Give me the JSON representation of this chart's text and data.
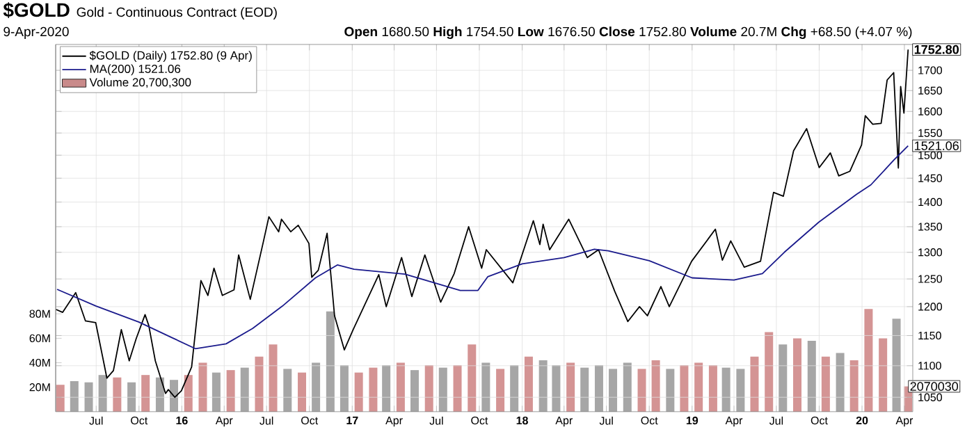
{
  "chart_data": {
    "type": "line",
    "title": "$GOLD",
    "subtitle": "Gold - Continuous Contract (EOD)",
    "annotations": [
      "9-Apr-2020",
      "**Open** 1680.50 **High** 1754.50 **Low** 1676.50 **Close** 1752.80 **Volume** 20.7M **Chg** +68.50 (+4.07 %)",
      "2070030",
      {
        "text": "1752.80",
        "x": "2020-04-09",
        "y": 1752.8
      },
      {
        "text": "1521.06",
        "x": "2020-04-09",
        "y": 1521.06
      }
    ],
    "xlim": [
      "2015-04-05",
      "2020-04-19"
    ],
    "xticks": [
      {
        "value": "2015-07-01",
        "label": "Jul"
      },
      {
        "value": "2015-10-01",
        "label": "Oct"
      },
      {
        "value": "2016-01-01",
        "label": "16"
      },
      {
        "value": "2016-04-01",
        "label": "Apr"
      },
      {
        "value": "2016-07-01",
        "label": "Jul"
      },
      {
        "value": "2016-10-01",
        "label": "Oct"
      },
      {
        "value": "2017-01-01",
        "label": "17"
      },
      {
        "value": "2017-04-01",
        "label": "Apr"
      },
      {
        "value": "2017-07-01",
        "label": "Jul"
      },
      {
        "value": "2017-10-01",
        "label": "Oct"
      },
      {
        "value": "2018-01-01",
        "label": "18"
      },
      {
        "value": "2018-04-01",
        "label": "Apr"
      },
      {
        "value": "2018-07-01",
        "label": "Jul"
      },
      {
        "value": "2018-10-01",
        "label": "Oct"
      },
      {
        "value": "2019-01-01",
        "label": "19"
      },
      {
        "value": "2019-04-01",
        "label": "Apr"
      },
      {
        "value": "2019-07-01",
        "label": "Jul"
      },
      {
        "value": "2019-10-01",
        "label": "Oct"
      },
      {
        "value": "2020-01-01",
        "label": "20"
      },
      {
        "value": "2020-04-01",
        "label": "Apr"
      }
    ],
    "ylim": [
      1028,
      1766
    ],
    "log": "y",
    "yticks": [
      1050,
      1100,
      1150,
      1200,
      1250,
      1300,
      1350,
      1400,
      1450,
      1500,
      1550,
      1600,
      1650,
      1700
    ],
    "y2lim": [
      0,
      300
    ],
    "y2ticks": [
      {
        "value": 20,
        "label": "20M"
      },
      {
        "value": 40,
        "label": "40M"
      },
      {
        "value": 60,
        "label": "60M"
      },
      {
        "value": 80,
        "label": "80M"
      }
    ],
    "grid": true,
    "legend": "top left",
    "marker": "none",
    "line_style": "solid",
    "series": [
      {
        "name": "$GOLD (Daily) 1752.80 (9 Apr)",
        "color": "#000000",
        "x": [
          "2015-04-06",
          "2015-04-20",
          "2015-05-18",
          "2015-06-08",
          "2015-06-30",
          "2015-07-20",
          "2015-07-24",
          "2015-08-07",
          "2015-08-24",
          "2015-09-10",
          "2015-09-25",
          "2015-10-14",
          "2015-10-22",
          "2015-11-05",
          "2015-11-27",
          "2015-12-03",
          "2015-12-17",
          "2015-12-31",
          "2016-01-22",
          "2016-02-11",
          "2016-02-26",
          "2016-03-10",
          "2016-03-28",
          "2016-04-22",
          "2016-05-02",
          "2016-05-27",
          "2016-06-24",
          "2016-07-06",
          "2016-07-27",
          "2016-08-02",
          "2016-08-22",
          "2016-09-07",
          "2016-09-30",
          "2016-10-06",
          "2016-10-20",
          "2016-11-08",
          "2016-11-24",
          "2016-12-15",
          "2017-01-03",
          "2017-02-27",
          "2017-03-15",
          "2017-04-17",
          "2017-05-09",
          "2017-06-06",
          "2017-07-10",
          "2017-08-08",
          "2017-09-08",
          "2017-10-06",
          "2017-10-16",
          "2017-12-12",
          "2018-01-25",
          "2018-02-08",
          "2018-02-15",
          "2018-03-01",
          "2018-04-11",
          "2018-05-21",
          "2018-06-14",
          "2018-07-19",
          "2018-08-16",
          "2018-09-10",
          "2018-09-27",
          "2018-10-26",
          "2018-11-13",
          "2018-12-31",
          "2019-02-20",
          "2019-03-07",
          "2019-03-25",
          "2019-04-23",
          "2019-05-28",
          "2019-06-25",
          "2019-07-16",
          "2019-08-07",
          "2019-09-04",
          "2019-10-01",
          "2019-10-25",
          "2019-11-12",
          "2019-12-06",
          "2019-12-31",
          "2020-01-08",
          "2020-01-24",
          "2020-02-11",
          "2020-02-24",
          "2020-03-09",
          "2020-03-19",
          "2020-03-24",
          "2020-03-31",
          "2020-04-09"
        ],
        "values": [
          1195,
          1190,
          1225,
          1175,
          1172,
          1095,
          1080,
          1092,
          1160,
          1108,
          1145,
          1186,
          1167,
          1108,
          1056,
          1062,
          1050,
          1060,
          1098,
          1247,
          1220,
          1270,
          1220,
          1230,
          1295,
          1213,
          1320,
          1370,
          1340,
          1365,
          1340,
          1353,
          1317,
          1253,
          1266,
          1337,
          1184,
          1126,
          1160,
          1258,
          1200,
          1290,
          1218,
          1295,
          1208,
          1260,
          1350,
          1270,
          1305,
          1243,
          1362,
          1315,
          1355,
          1305,
          1365,
          1290,
          1305,
          1227,
          1174,
          1200,
          1184,
          1236,
          1200,
          1283,
          1345,
          1285,
          1322,
          1272,
          1283,
          1420,
          1412,
          1510,
          1560,
          1473,
          1505,
          1455,
          1465,
          1523,
          1590,
          1570,
          1572,
          1676,
          1694,
          1472,
          1660,
          1596,
          1752.8
        ]
      },
      {
        "name": "MA(200) 1521.06",
        "color": "#1a1a8c",
        "x": [
          "2015-04-08",
          "2015-07-01",
          "2015-10-01",
          "2015-12-12",
          "2016-01-30",
          "2016-04-05",
          "2016-06-01",
          "2016-08-04",
          "2016-10-14",
          "2016-11-30",
          "2017-01-05",
          "2017-04-24",
          "2017-08-21",
          "2017-09-28",
          "2017-10-19",
          "2018-01-01",
          "2018-04-01",
          "2018-06-05",
          "2018-07-05",
          "2018-10-01",
          "2019-01-01",
          "2019-04-01",
          "2019-06-01",
          "2019-07-18",
          "2019-09-30",
          "2019-12-20",
          "2020-01-20",
          "2020-03-10",
          "2020-04-09"
        ],
        "values": [
          1231,
          1201,
          1173,
          1146,
          1128,
          1136,
          1162,
          1201,
          1252,
          1276,
          1268,
          1259,
          1229,
          1229,
          1254,
          1278,
          1290,
          1306,
          1303,
          1284,
          1252,
          1248,
          1260,
          1300,
          1359,
          1416,
          1436,
          1490,
          1521.06
        ]
      },
      {
        "name": "Volume 20,700,300",
        "type": "bar",
        "axis": "y2",
        "color": "#c98a8a",
        "x": [
          "2015-04-15",
          "2015-05-15",
          "2015-06-15",
          "2015-07-15",
          "2015-08-15",
          "2015-09-15",
          "2015-10-15",
          "2015-11-15",
          "2015-12-15",
          "2016-01-15",
          "2016-02-15",
          "2016-03-15",
          "2016-04-15",
          "2016-05-15",
          "2016-06-15",
          "2016-07-15",
          "2016-08-15",
          "2016-09-15",
          "2016-10-15",
          "2016-11-15",
          "2016-12-15",
          "2017-01-15",
          "2017-02-15",
          "2017-03-15",
          "2017-04-15",
          "2017-05-15",
          "2017-06-15",
          "2017-07-15",
          "2017-08-15",
          "2017-09-15",
          "2017-10-15",
          "2017-11-15",
          "2017-12-15",
          "2018-01-15",
          "2018-02-15",
          "2018-03-15",
          "2018-04-15",
          "2018-05-15",
          "2018-06-15",
          "2018-07-15",
          "2018-08-15",
          "2018-09-15",
          "2018-10-15",
          "2018-11-15",
          "2018-12-15",
          "2019-01-15",
          "2019-02-15",
          "2019-03-15",
          "2019-04-15",
          "2019-05-15",
          "2019-06-15",
          "2019-07-15",
          "2019-08-15",
          "2019-09-15",
          "2019-10-15",
          "2019-11-15",
          "2019-12-15",
          "2020-01-15",
          "2020-02-15",
          "2020-03-15",
          "2020-04-09"
        ],
        "values": [
          22,
          25,
          24,
          30,
          28,
          24,
          30,
          28,
          26,
          30,
          40,
          32,
          34,
          36,
          45,
          55,
          35,
          32,
          40,
          82,
          38,
          32,
          36,
          38,
          40,
          34,
          38,
          36,
          38,
          55,
          40,
          35,
          38,
          45,
          42,
          38,
          40,
          36,
          38,
          35,
          40,
          35,
          42,
          35,
          38,
          40,
          38,
          36,
          35,
          45,
          65,
          55,
          60,
          58,
          45,
          48,
          42,
          84,
          60,
          76,
          20.7
        ],
        "colors": [
          "#d49494",
          "#a6a6a6",
          "#a6a6a6",
          "#a6a6a6",
          "#d49494",
          "#a6a6a6",
          "#d49494",
          "#a6a6a6",
          "#a6a6a6",
          "#d49494",
          "#d49494",
          "#a6a6a6",
          "#d49494",
          "#a6a6a6",
          "#d49494",
          "#d49494",
          "#a6a6a6",
          "#d49494",
          "#a6a6a6",
          "#a6a6a6",
          "#a6a6a6",
          "#d49494",
          "#d49494",
          "#a6a6a6",
          "#d49494",
          "#a6a6a6",
          "#d49494",
          "#a6a6a6",
          "#d49494",
          "#d49494",
          "#a6a6a6",
          "#d49494",
          "#a6a6a6",
          "#d49494",
          "#a6a6a6",
          "#a6a6a6",
          "#d49494",
          "#a6a6a6",
          "#a6a6a6",
          "#a6a6a6",
          "#a6a6a6",
          "#d49494",
          "#d49494",
          "#a6a6a6",
          "#d49494",
          "#d49494",
          "#d49494",
          "#a6a6a6",
          "#a6a6a6",
          "#d49494",
          "#d49494",
          "#a6a6a6",
          "#d49494",
          "#a6a6a6",
          "#d49494",
          "#a6a6a6",
          "#d49494",
          "#d49494",
          "#d49494",
          "#a6a6a6",
          "#d49494"
        ]
      }
    ]
  }
}
